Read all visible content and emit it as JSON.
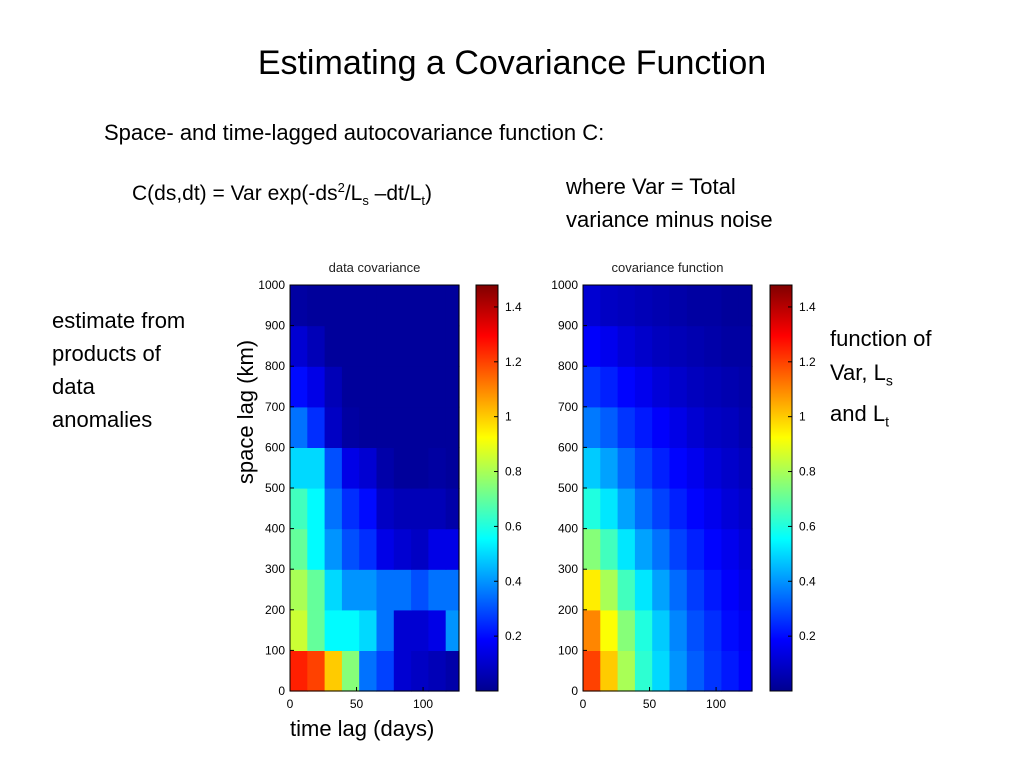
{
  "slide": {
    "title": "Estimating a Covariance Function",
    "subtitle": "Space- and time-lagged autocovariance function C:",
    "formula": {
      "lhs": "C(ds,dt) = Var exp(-ds",
      "sup": "2",
      "mid": "/L",
      "sub1": "s",
      "mid2": " –dt/L",
      "sub2": "t",
      "tail": ")"
    },
    "note_lines": [
      "where Var = Total",
      "variance minus noise"
    ],
    "left_note_lines": [
      "estimate from",
      "products of",
      "data",
      "anomalies"
    ],
    "right_note": {
      "line1": "function of",
      "line2_prefix": "Var,  L",
      "line2_sub": "s",
      "line3_prefix": "and L",
      "line3_sub": "t"
    },
    "y_axis_label": "space lag (km)",
    "x_axis_label": "time lag (days)"
  },
  "chart_data": [
    {
      "type": "heatmap",
      "title": "data covariance",
      "xlabel": "time lag (days)",
      "ylabel": "space lag (km)",
      "x_ticks": [
        0,
        50,
        100
      ],
      "y_ticks": [
        0,
        100,
        200,
        300,
        400,
        500,
        600,
        700,
        800,
        900,
        1000
      ],
      "xlim": [
        0,
        127
      ],
      "ylim": [
        0,
        1000
      ],
      "x_bin_width_days": 13,
      "y_bin_height_km": 100,
      "rows_from_bottom": [
        [
          1.25,
          1.2,
          1.0,
          0.75,
          0.35,
          0.28,
          0.12,
          0.1,
          0.08,
          0.06
        ],
        [
          0.85,
          0.7,
          0.55,
          0.55,
          0.5,
          0.35,
          0.12,
          0.12,
          0.15,
          0.4
        ],
        [
          0.8,
          0.7,
          0.5,
          0.4,
          0.4,
          0.35,
          0.35,
          0.3,
          0.35,
          0.35
        ],
        [
          0.7,
          0.55,
          0.4,
          0.3,
          0.25,
          0.15,
          0.12,
          0.1,
          0.15,
          0.15
        ],
        [
          0.65,
          0.55,
          0.35,
          0.25,
          0.2,
          0.1,
          0.08,
          0.08,
          0.08,
          0.06
        ],
        [
          0.5,
          0.5,
          0.3,
          0.15,
          0.12,
          0.06,
          0.04,
          0.04,
          0.05,
          0.04
        ],
        [
          0.35,
          0.25,
          0.1,
          0.05,
          0.04,
          0.04,
          0.04,
          0.04,
          0.04,
          0.04
        ],
        [
          0.2,
          0.15,
          0.08,
          0.04,
          0.04,
          0.04,
          0.04,
          0.04,
          0.04,
          0.04
        ],
        [
          0.12,
          0.08,
          0.04,
          0.04,
          0.04,
          0.04,
          0.04,
          0.04,
          0.04,
          0.04
        ],
        [
          0.05,
          0.04,
          0.04,
          0.04,
          0.04,
          0.04,
          0.04,
          0.04,
          0.04,
          0.04
        ]
      ]
    },
    {
      "type": "heatmap",
      "title": "covariance function",
      "xlabel": "time lag (days)",
      "ylabel": "space lag (km)",
      "x_ticks": [
        0,
        50,
        100
      ],
      "y_ticks": [
        0,
        100,
        200,
        300,
        400,
        500,
        600,
        700,
        800,
        900,
        1000
      ],
      "xlim": [
        0,
        127
      ],
      "ylim": [
        0,
        1000
      ],
      "x_bin_width_days": 13,
      "y_bin_height_km": 100,
      "rows_from_bottom": [
        [
          1.2,
          1.0,
          0.8,
          0.62,
          0.5,
          0.4,
          0.32,
          0.26,
          0.22,
          0.18
        ],
        [
          1.1,
          0.92,
          0.75,
          0.6,
          0.48,
          0.38,
          0.3,
          0.25,
          0.2,
          0.17
        ],
        [
          0.95,
          0.8,
          0.65,
          0.52,
          0.42,
          0.34,
          0.27,
          0.22,
          0.18,
          0.15
        ],
        [
          0.75,
          0.65,
          0.52,
          0.42,
          0.35,
          0.28,
          0.23,
          0.19,
          0.16,
          0.13
        ],
        [
          0.6,
          0.52,
          0.42,
          0.34,
          0.28,
          0.23,
          0.19,
          0.16,
          0.13,
          0.11
        ],
        [
          0.48,
          0.42,
          0.34,
          0.28,
          0.23,
          0.19,
          0.16,
          0.13,
          0.11,
          0.09
        ],
        [
          0.36,
          0.32,
          0.26,
          0.22,
          0.18,
          0.15,
          0.12,
          0.1,
          0.09,
          0.07
        ],
        [
          0.26,
          0.23,
          0.19,
          0.16,
          0.13,
          0.11,
          0.09,
          0.08,
          0.07,
          0.06
        ],
        [
          0.18,
          0.16,
          0.13,
          0.11,
          0.09,
          0.08,
          0.07,
          0.06,
          0.05,
          0.05
        ],
        [
          0.12,
          0.1,
          0.09,
          0.08,
          0.07,
          0.06,
          0.05,
          0.05,
          0.04,
          0.04
        ]
      ]
    }
  ],
  "colorbars": [
    {
      "range": [
        0.0,
        1.48
      ],
      "ticks": [
        0.2,
        0.4,
        0.6,
        0.8,
        1,
        1.2,
        1.4
      ],
      "colormap": "jet"
    },
    {
      "range": [
        0.0,
        1.48
      ],
      "ticks": [
        0.2,
        0.4,
        0.6,
        0.8,
        1,
        1.2,
        1.4
      ],
      "colormap": "jet"
    }
  ]
}
